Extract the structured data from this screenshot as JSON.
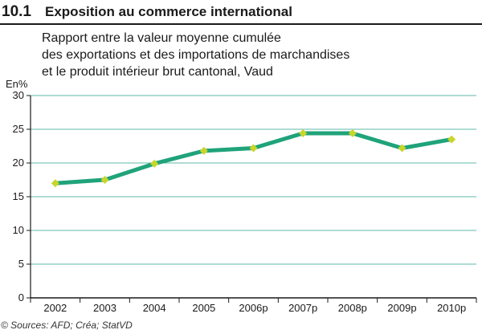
{
  "figure": {
    "number": "10.1",
    "title": "Exposition au commerce international",
    "subtitle_lines": [
      "Rapport entre la valeur moyenne cumulée",
      "des exportations et des importations de marchandises",
      "et le produit intérieur brut cantonal, Vaud"
    ],
    "source": "© Sources: AFD; Créa; StatVD"
  },
  "chart_data": {
    "type": "line",
    "ylabel": "En%",
    "xlabel": "",
    "categories": [
      "2002",
      "2003",
      "2004",
      "2005",
      "2006p",
      "2007p",
      "2008p",
      "2009p",
      "2010p"
    ],
    "series": [
      {
        "values": [
          17.0,
          17.5,
          19.9,
          21.8,
          22.2,
          24.4,
          24.4,
          22.2,
          23.5
        ]
      }
    ],
    "ylim": [
      0,
      30
    ],
    "yticks": [
      0,
      5,
      10,
      15,
      20,
      25,
      30
    ],
    "grid": "horizontal",
    "colors": {
      "line": "#1fa37a",
      "marker": "#c8d62a",
      "grid": "#5fb8a8",
      "axis": "#1a1a1a",
      "header_rule": "#1a1a1a"
    }
  }
}
